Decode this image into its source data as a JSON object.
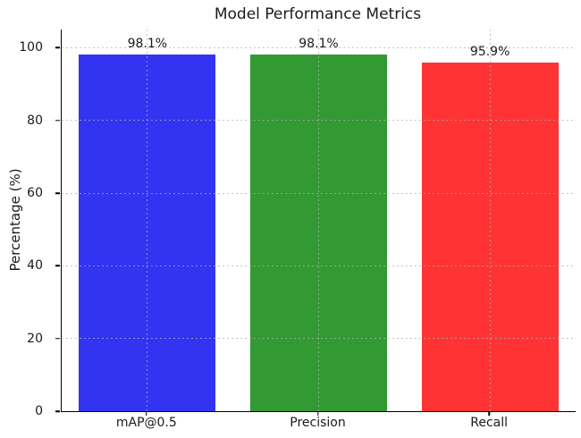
{
  "chart_data": {
    "type": "bar",
    "title": "Model Performance Metrics",
    "xlabel": "",
    "ylabel": "Percentage (%)",
    "categories": [
      "mAP@0.5",
      "Precision",
      "Recall"
    ],
    "values": [
      98.1,
      98.1,
      95.9
    ],
    "value_labels": [
      "98.1%",
      "98.1%",
      "95.9%"
    ],
    "bar_colors": [
      "#3333F2",
      "#339933",
      "#FF3333"
    ],
    "bar_alpha": 0.8,
    "bar_width_fraction": 0.8,
    "ylim": [
      0,
      105
    ],
    "yticks": [
      0,
      20,
      40,
      60,
      80,
      100
    ],
    "grid": "on",
    "grid_line_style": "dotted",
    "grid_color": "#B0B0B0",
    "background_color": "#FFFFFF",
    "text_color": "#1A1A1A",
    "legend": "none"
  }
}
